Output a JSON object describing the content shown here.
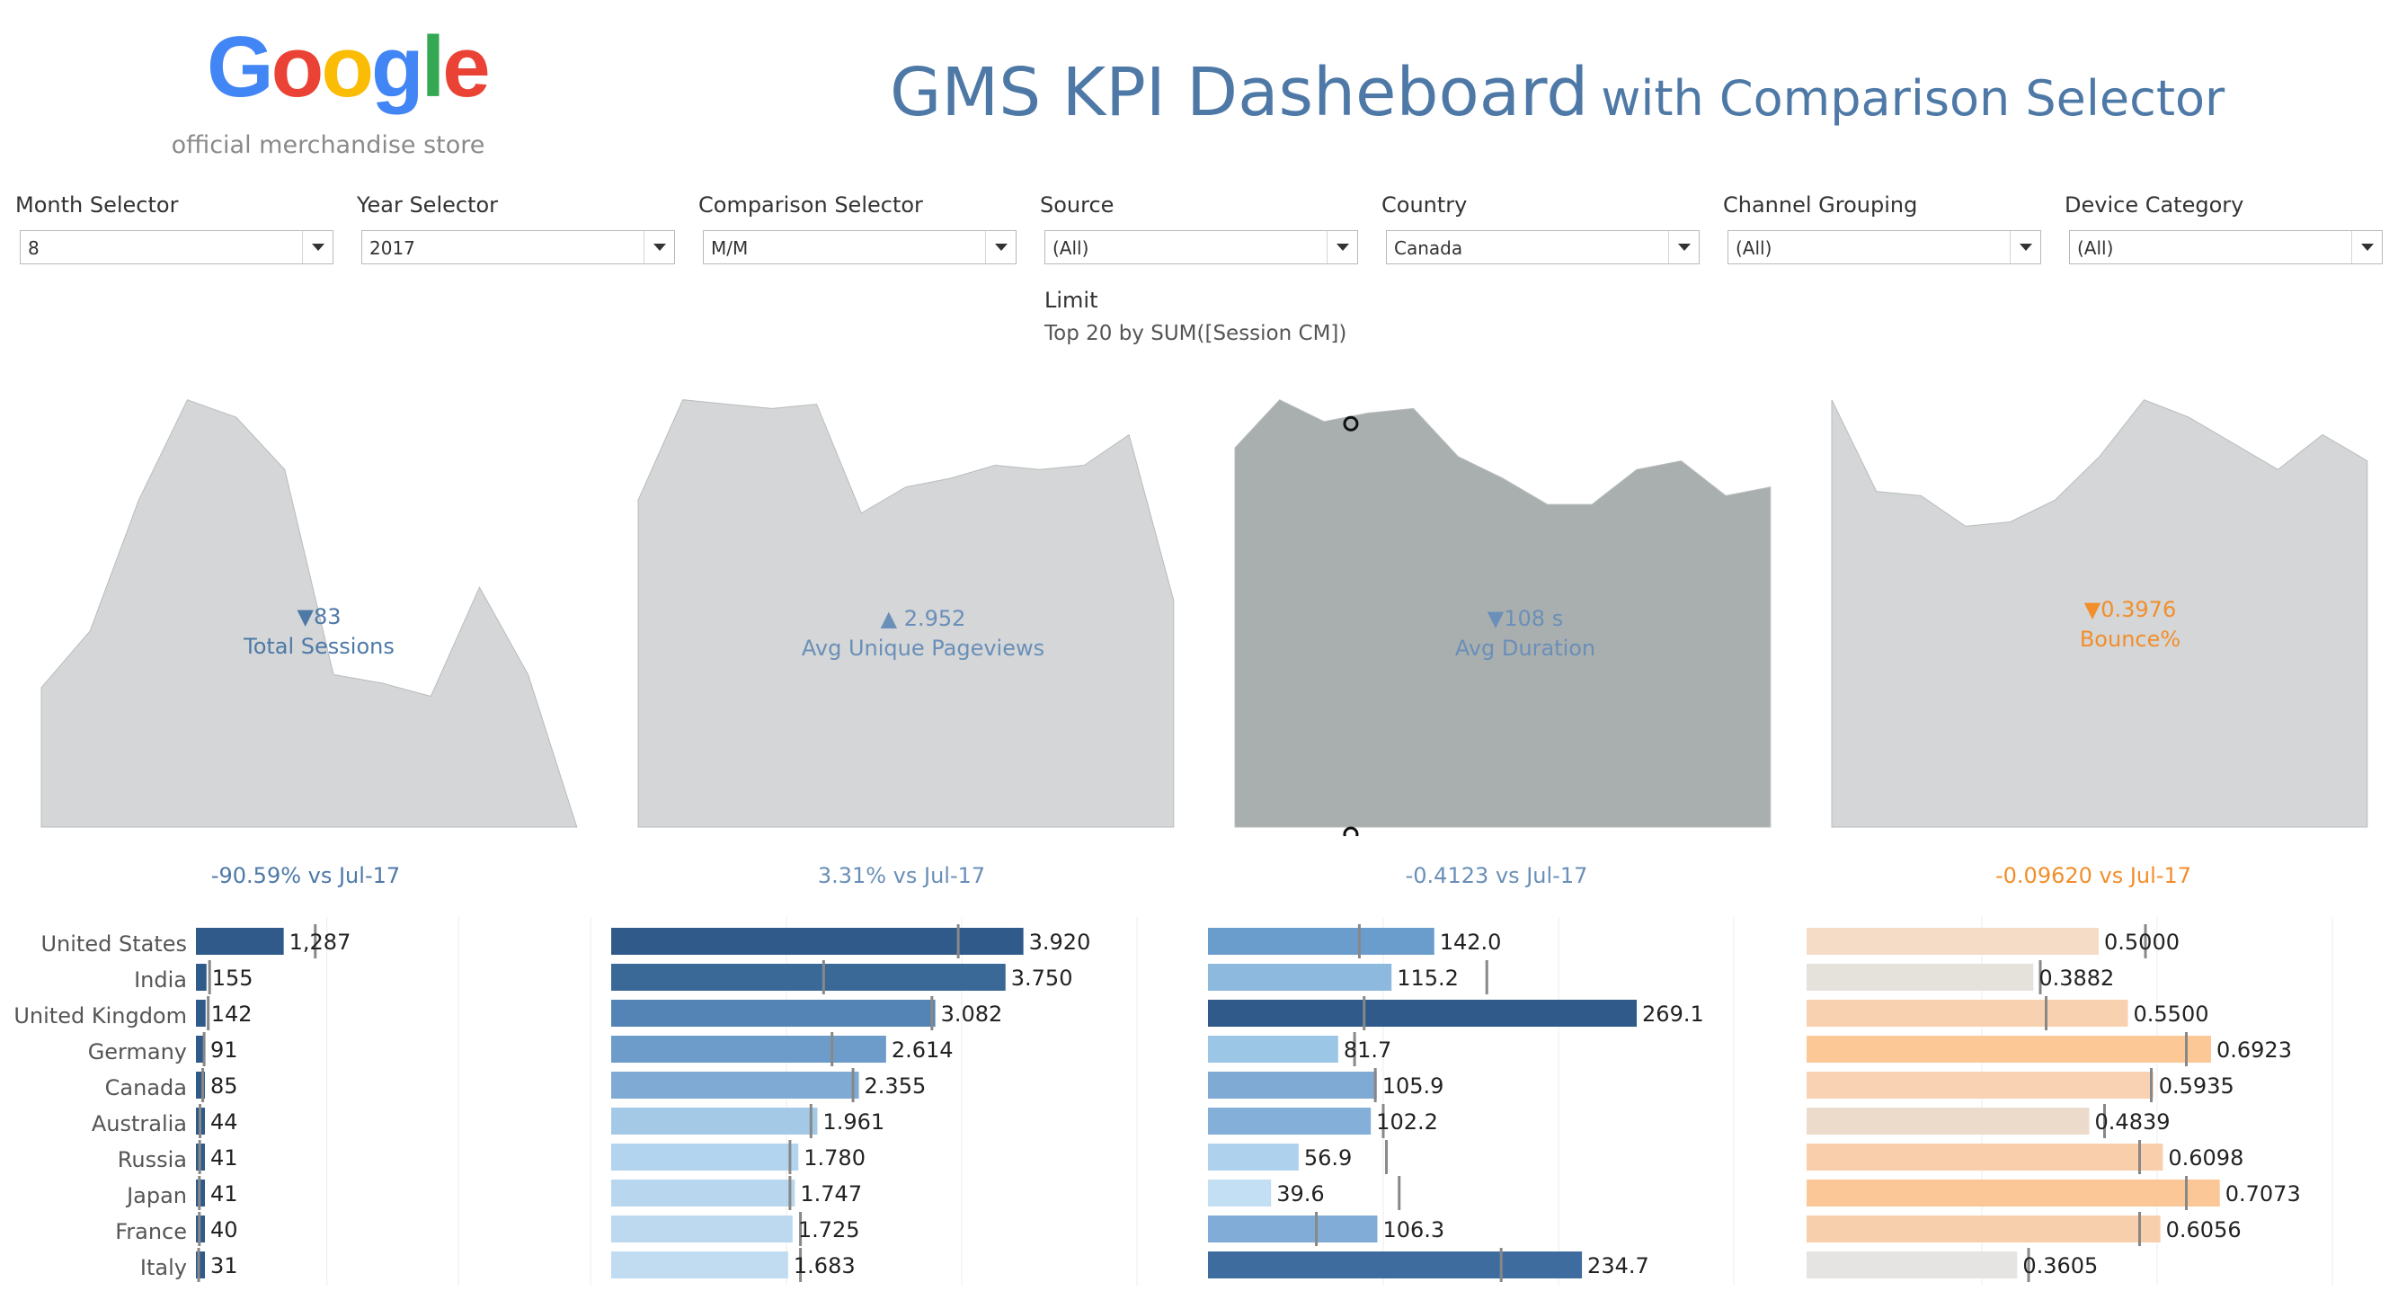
{
  "header": {
    "logo_text": "Google",
    "logo_subtitle": "official merchandise store",
    "title_main": "GMS KPI Dasheboard",
    "title_sub": "with Comparison Selector",
    "logo_colors": [
      "#4285f4",
      "#ea4335",
      "#fbbc05",
      "#4285f4",
      "#34a853",
      "#ea4335"
    ]
  },
  "filters": [
    {
      "label": "Month Selector",
      "value": "8"
    },
    {
      "label": "Year Selector",
      "value": "2017"
    },
    {
      "label": "Comparison Selector",
      "value": "M/M"
    },
    {
      "label": "Source",
      "value": "(All)"
    },
    {
      "label": "Country",
      "value": "Canada"
    },
    {
      "label": "Channel Grouping",
      "value": "(All)"
    },
    {
      "label": "Device Category",
      "value": "(All)"
    }
  ],
  "limit": {
    "label": "Limit",
    "value": "Top 20 by SUM([Session CM])"
  },
  "kpis": [
    {
      "arrow": "▼",
      "value": "83",
      "name": "Total Sessions",
      "comparison": "-90.59% vs Jul-17",
      "color": "#4e79a7",
      "fill": "#d4d6d7",
      "trend": [
        0.32,
        0.45,
        0.75,
        0.98,
        0.94,
        0.82,
        0.35,
        0.33,
        0.3,
        0.55,
        0.35,
        0.0
      ]
    },
    {
      "arrow": "▲",
      "value": "2.952",
      "name": "Avg Unique Pageviews",
      "comparison": "3.31% vs Jul-17",
      "color": "#6a8fb8",
      "fill": "#d4d6d7",
      "trend": [
        0.75,
        0.98,
        0.97,
        0.96,
        0.97,
        0.72,
        0.78,
        0.8,
        0.83,
        0.82,
        0.83,
        0.9,
        0.52
      ]
    },
    {
      "arrow": "▼",
      "value": "108 s",
      "name": "Avg Duration",
      "comparison": "-0.4123 vs Jul-17",
      "color": "#6a8fb8",
      "fill": "#a9afaf",
      "trend": [
        0.87,
        0.98,
        0.93,
        0.95,
        0.96,
        0.85,
        0.8,
        0.74,
        0.74,
        0.82,
        0.84,
        0.76,
        0.78
      ]
    },
    {
      "arrow": "▼",
      "value": "0.3976",
      "name": "Bounce%",
      "comparison": "-0.09620 vs Jul-17",
      "color": "#f28e2b",
      "fill": "#d4d6d7",
      "trend": [
        0.98,
        0.77,
        0.76,
        0.69,
        0.7,
        0.75,
        0.85,
        0.98,
        0.94,
        0.88,
        0.82,
        0.9,
        0.84
      ]
    }
  ],
  "countries": [
    "United States",
    "India",
    "United Kingdom",
    "Germany",
    "Canada",
    "Australia",
    "Russia",
    "Japan",
    "France",
    "Italy"
  ],
  "bar_panels": [
    {
      "labels": [
        "1,287",
        "155",
        "142",
        "91",
        "85",
        "44",
        "41",
        "41",
        "40",
        "31"
      ],
      "values": [
        1287,
        155,
        142,
        91,
        85,
        44,
        41,
        41,
        40,
        31
      ],
      "ref": [
        1750,
        200,
        180,
        120,
        100,
        60,
        55,
        50,
        50,
        40
      ],
      "max": 5800,
      "colors": [
        "#2f5a8a",
        "#2f5a8a",
        "#2f5a8a",
        "#2f5a8a",
        "#2f5a8a",
        "#2f5a8a",
        "#2f5a8a",
        "#2f5a8a",
        "#2f5a8a",
        "#2f5a8a"
      ]
    },
    {
      "labels": [
        "3.920",
        "3.750",
        "3.082",
        "2.614",
        "2.355",
        "1.961",
        "1.780",
        "1.747",
        "1.725",
        "1.683"
      ],
      "values": [
        3.92,
        3.75,
        3.082,
        2.614,
        2.355,
        1.961,
        1.78,
        1.747,
        1.725,
        1.683
      ],
      "ref": [
        3.3,
        2.02,
        3.05,
        2.1,
        2.3,
        1.9,
        1.7,
        1.7,
        1.8,
        1.8
      ],
      "max": 5.0,
      "colors": [
        "#2f5a8a",
        "#3a6997",
        "#5484b5",
        "#6e9cca",
        "#7faad4",
        "#a4c9e6",
        "#b3d4ee",
        "#b8d7ef",
        "#bcd9f0",
        "#c1dcf1"
      ]
    },
    {
      "labels": [
        "142.0",
        "115.2",
        "269.1",
        "81.7",
        "105.9",
        "102.2",
        "56.9",
        "39.6",
        "106.3",
        "234.7"
      ],
      "values": [
        142.0,
        115.2,
        269.1,
        81.7,
        105.9,
        102.2,
        56.9,
        39.6,
        106.3,
        234.7
      ],
      "ref": [
        95,
        175,
        98,
        92,
        105,
        110,
        112,
        120,
        68,
        184
      ],
      "max": 330,
      "colors": [
        "#6a9dcb",
        "#8db9de",
        "#2f5a8a",
        "#9cc6e6",
        "#7faad4",
        "#83afd9",
        "#aed2ee",
        "#c3dff3",
        "#81acd7",
        "#3f6c9e"
      ]
    },
    {
      "labels": [
        "0.5000",
        "0.3882",
        "0.5500",
        "0.6923",
        "0.5935",
        "0.4839",
        "0.6098",
        "0.7073",
        "0.6056",
        "0.3605"
      ],
      "values": [
        0.5,
        0.3882,
        0.55,
        0.6923,
        0.5935,
        0.4839,
        0.6098,
        0.7073,
        0.6056,
        0.3605
      ],
      "ref": [
        0.58,
        0.4,
        0.41,
        0.65,
        0.59,
        0.51,
        0.57,
        0.65,
        0.57,
        0.38
      ],
      "max": 0.9,
      "colors": [
        "#f5dcc6",
        "#e5e2dc",
        "#f8d1b0",
        "#fbc896",
        "#f8d2b2",
        "#ecdbcb",
        "#f9ceaa",
        "#fbc797",
        "#f8cfac",
        "#e5e4e2"
      ]
    }
  ]
}
